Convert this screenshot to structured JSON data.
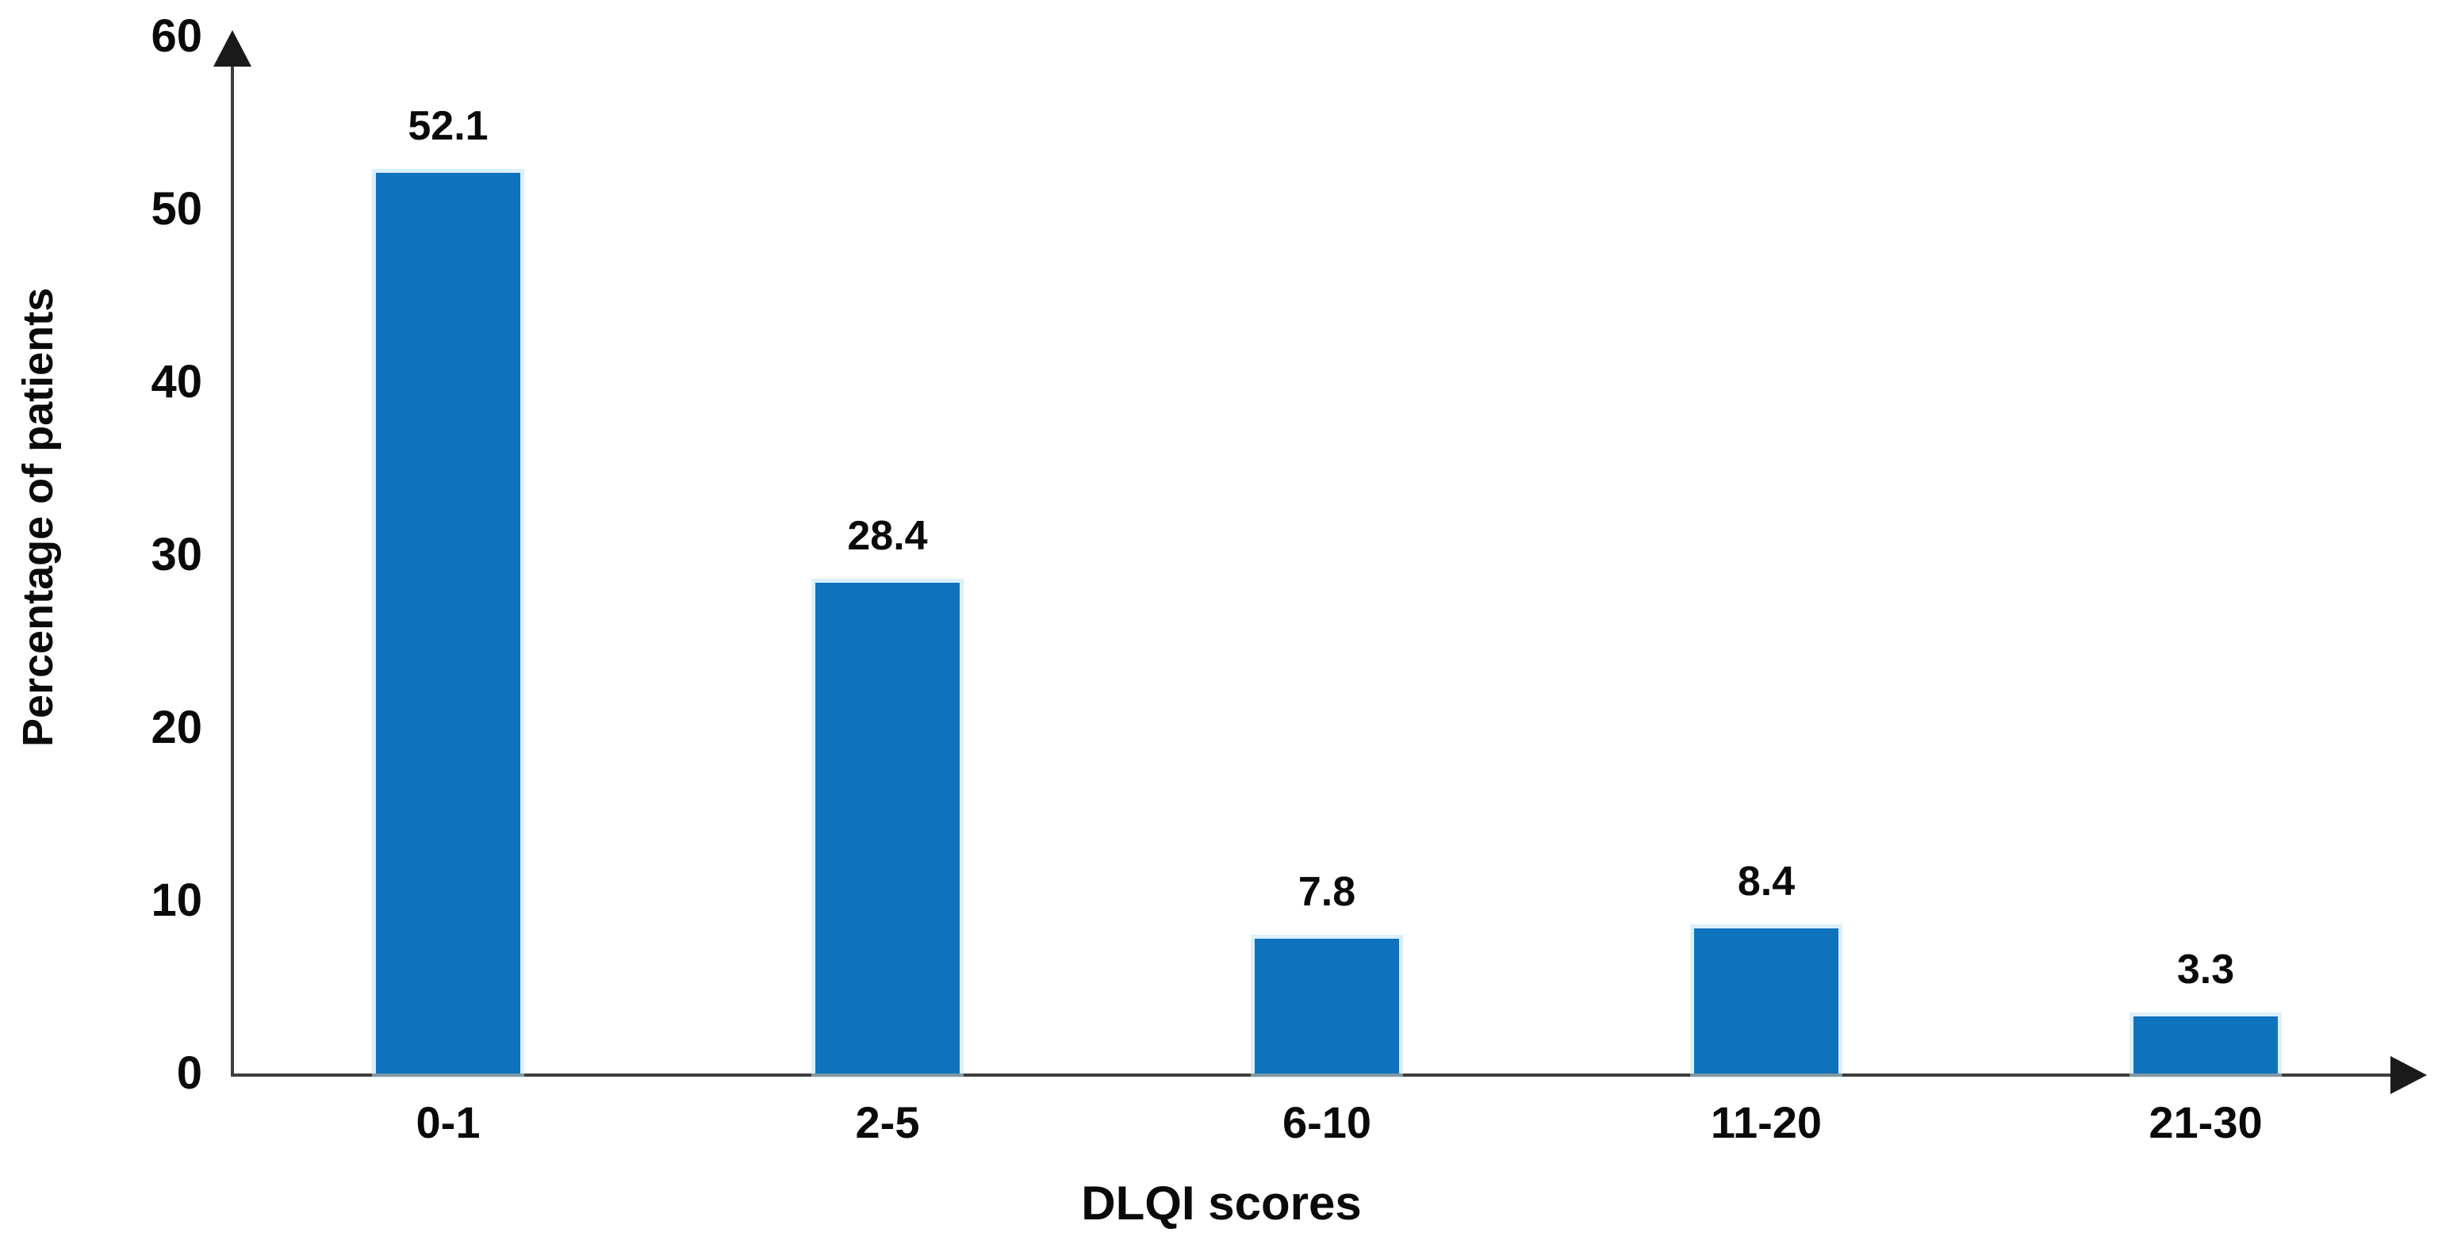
{
  "chart_data": {
    "type": "bar",
    "title": "",
    "categories": [
      "0-1",
      "2-5",
      "6-10",
      "11-20",
      "21-30"
    ],
    "values": [
      52.1,
      28.4,
      7.8,
      8.4,
      3.3
    ],
    "value_labels": [
      "52.1",
      "28.4",
      "7.8",
      "8.4",
      "3.3"
    ],
    "xlabel": "DLQI scores",
    "ylabel": "Percentage of patients",
    "yticks": [
      0,
      10,
      20,
      30,
      40,
      50,
      60
    ],
    "ylim": [
      0,
      60
    ],
    "grid": false,
    "legend_position": "none",
    "bar_color": "#0f72bd",
    "axis_color": "#3d3d3d",
    "text_color": "#0a0a0a"
  }
}
